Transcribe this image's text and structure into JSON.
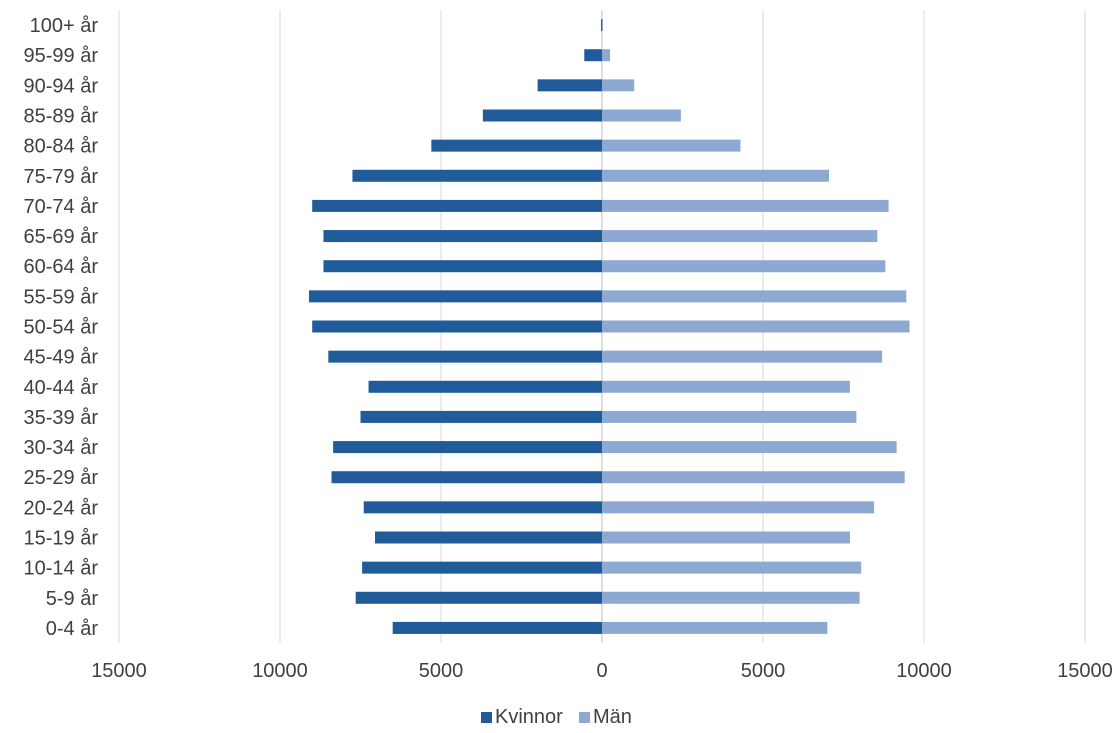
{
  "chart_data": {
    "type": "bar",
    "orientation": "horizontal",
    "categories": [
      "0-4 år",
      "5-9 år",
      "10-14 år",
      "15-19 år",
      "20-24 år",
      "25-29 år",
      "30-34 år",
      "35-39 år",
      "40-44 år",
      "45-49 år",
      "50-54 år",
      "55-59 år",
      "60-64 år",
      "65-69 år",
      "70-74 år",
      "75-79 år",
      "80-84 år",
      "85-89 år",
      "90-94 år",
      "95-99 år",
      "100+ år"
    ],
    "series": [
      {
        "name": "Kvinnor",
        "color": "#1F5C99",
        "values": [
          6500,
          7650,
          7450,
          7050,
          7400,
          8400,
          8350,
          7500,
          7250,
          8500,
          9000,
          9100,
          8650,
          8650,
          9000,
          7750,
          5300,
          3700,
          2000,
          550,
          30
        ]
      },
      {
        "name": "Män",
        "color": "#8EA9D1",
        "values": [
          7000,
          8000,
          8050,
          7700,
          8450,
          9400,
          9150,
          7900,
          7700,
          8700,
          9550,
          9450,
          8800,
          8550,
          8900,
          7050,
          4300,
          2450,
          1000,
          250,
          30
        ]
      }
    ],
    "xlim": [
      -15000,
      15000
    ],
    "xticks": [
      -15000,
      -10000,
      -5000,
      0,
      5000,
      10000,
      15000
    ],
    "xtick_labels": [
      "15000",
      "10000",
      "5000",
      "0",
      "5000",
      "10000",
      "15000"
    ],
    "grid": true,
    "legend": "bottom-center",
    "title": "",
    "xlabel": "",
    "ylabel": ""
  }
}
